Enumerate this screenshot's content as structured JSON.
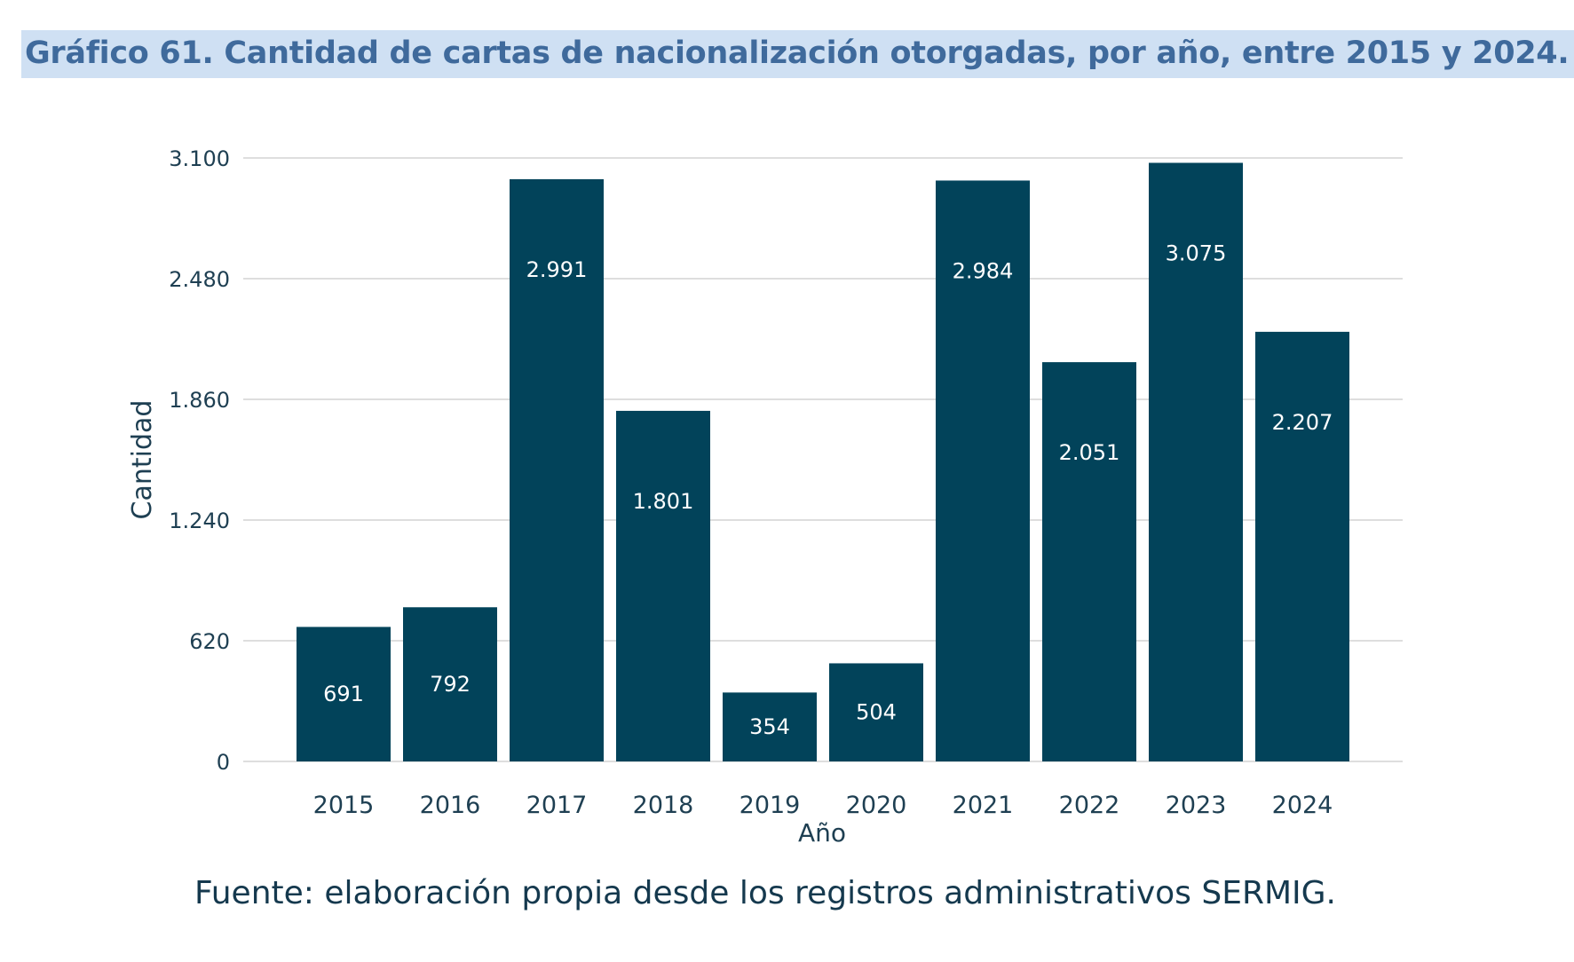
{
  "title": "Gráfico 61. Cantidad de cartas de nacionalización otorgadas, por año, entre 2015 y 2024.",
  "source": "Fuente: elaboración propia desde los registros administrativos SERMIG.",
  "colors": {
    "bar": "#02435a",
    "bar_label": "#ffffff",
    "grid": "#dedede",
    "axis_text": "#1e3f52",
    "title_bg": "#cfe0f3",
    "title_text": "#3f6a9c"
  },
  "chart_data": {
    "type": "bar",
    "categories": [
      "2015",
      "2016",
      "2017",
      "2018",
      "2019",
      "2020",
      "2021",
      "2022",
      "2023",
      "2024"
    ],
    "values": [
      691,
      792,
      2991,
      1801,
      354,
      504,
      2984,
      2051,
      3075,
      2207
    ],
    "value_labels": [
      "691",
      "792",
      "2.991",
      "1.801",
      "354",
      "504",
      "2.984",
      "2.051",
      "3.075",
      "2.207"
    ],
    "xlabel": "Año",
    "ylabel": "Cantidad",
    "ylim": [
      0,
      3100
    ],
    "yticks": [
      0,
      620,
      1240,
      1860,
      2480,
      3100
    ],
    "ytick_labels": [
      "0",
      "620",
      "1.240",
      "1.860",
      "2.480",
      "3.100"
    ],
    "grid": true,
    "legend": "none"
  }
}
